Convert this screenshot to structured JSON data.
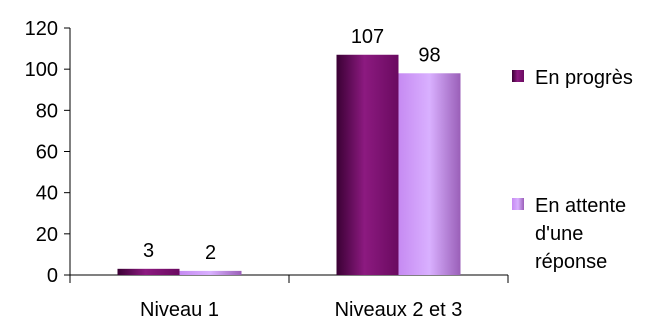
{
  "chart_data": {
    "type": "bar",
    "categories": [
      "Niveau 1",
      "Niveaux 2 et 3"
    ],
    "series": [
      {
        "name": "En progrès",
        "values": [
          3,
          107
        ],
        "color": "#7a0f6e"
      },
      {
        "name": "En attente d'une réponse",
        "values": [
          2,
          98
        ],
        "color": "#c890f2"
      }
    ],
    "legend": {
      "placement": "right",
      "entries": [
        {
          "lines": [
            "En progrès"
          ]
        },
        {
          "lines": [
            "En attente",
            "d'une",
            "réponse"
          ]
        }
      ]
    },
    "yticks": [
      "0",
      "20",
      "40",
      "60",
      "80",
      "100",
      "120"
    ],
    "ylim": [
      0,
      120
    ],
    "grid": false,
    "data_labels": true,
    "title": "",
    "xlabel": "",
    "ylabel": ""
  }
}
